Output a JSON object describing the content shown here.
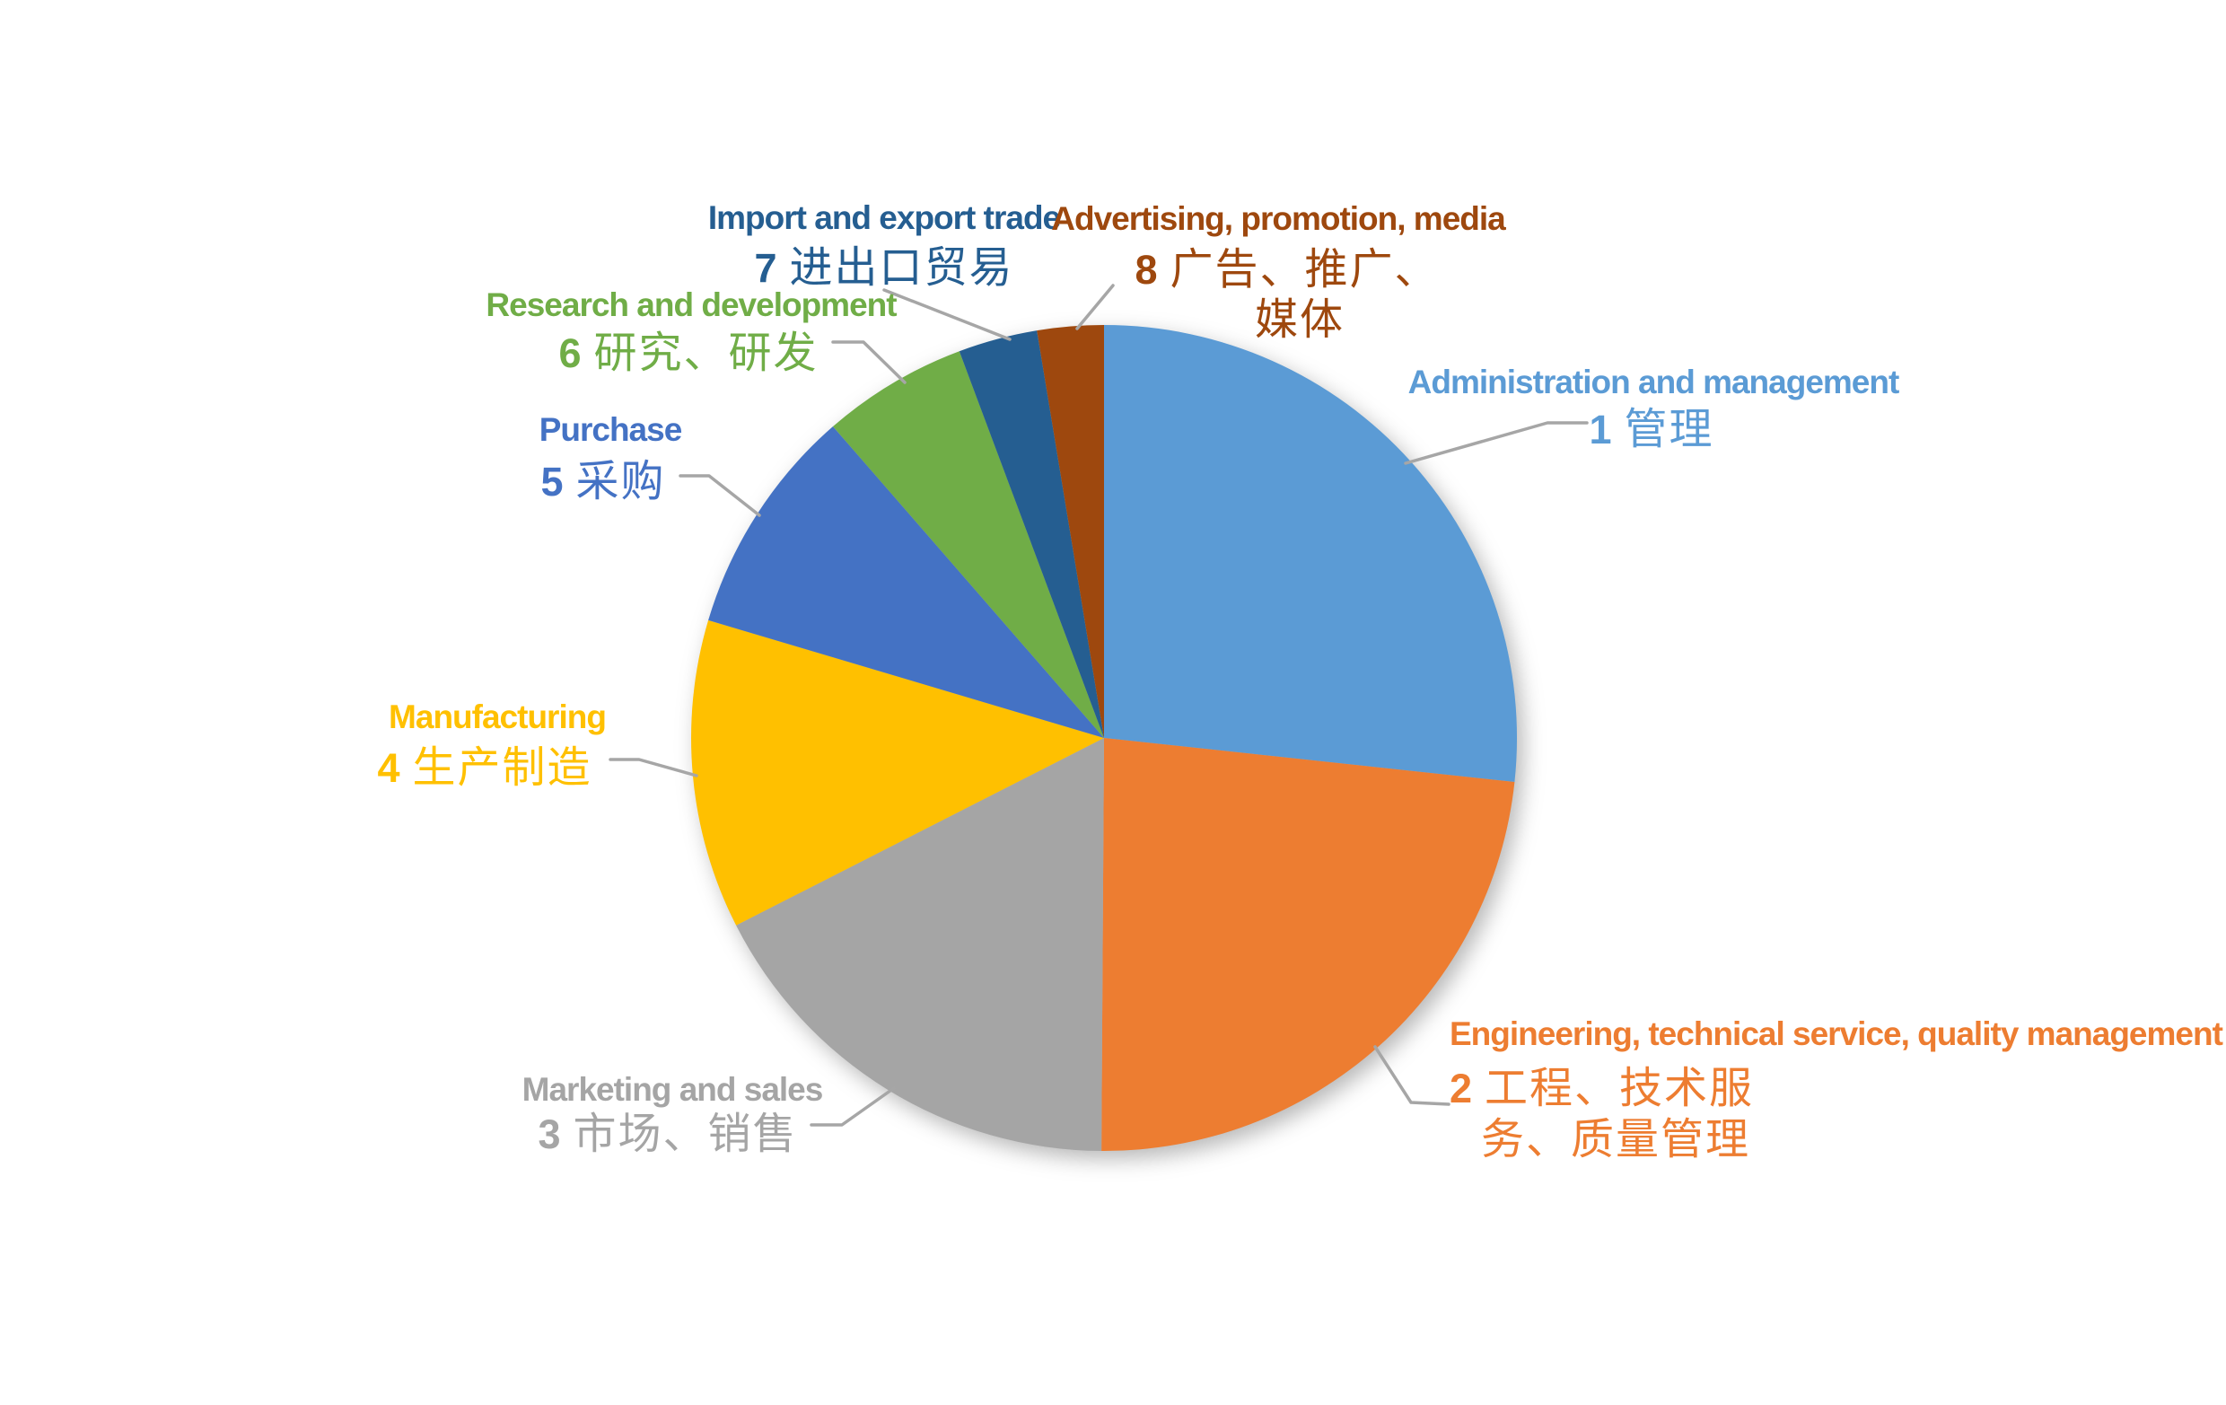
{
  "chart_data": {
    "type": "pie",
    "title": "",
    "start_angle_deg": 0,
    "direction": "clockwise",
    "legend": "none",
    "slices": [
      {
        "num": "1",
        "label_en": "Administration and management",
        "zh_lines": [
          "管理"
        ],
        "value_pct": 26.7,
        "color": "#5B9BD5"
      },
      {
        "num": "2",
        "label_en": "Engineering, technical service, quality management",
        "zh_lines": [
          "工程、技术服",
          "务、质量管理"
        ],
        "value_pct": 23.4,
        "color": "#ED7D31"
      },
      {
        "num": "3",
        "label_en": "Marketing and sales",
        "zh_lines": [
          "市场、销售"
        ],
        "value_pct": 17.4,
        "color": "#A5A5A5"
      },
      {
        "num": "4",
        "label_en": "Manufacturing",
        "zh_lines": [
          "生产制造"
        ],
        "value_pct": 12.1,
        "color": "#FFC000"
      },
      {
        "num": "5",
        "label_en": "Purchase",
        "zh_lines": [
          "采购"
        ],
        "value_pct": 9.0,
        "color": "#4472C4"
      },
      {
        "num": "6",
        "label_en": "Research and development",
        "zh_lines": [
          "研究、研发"
        ],
        "value_pct": 5.7,
        "color": "#70AD47"
      },
      {
        "num": "7",
        "label_en": "Import and export trade",
        "zh_lines": [
          "进出口贸易"
        ],
        "value_pct": 3.1,
        "color": "#255E91"
      },
      {
        "num": "8",
        "label_en": "Advertising, promotion, media",
        "zh_lines": [
          "广告、推广、",
          "媒体"
        ],
        "value_pct": 2.6,
        "color": "#9E480E"
      }
    ]
  },
  "leader_line_color": "#A6A6A6"
}
